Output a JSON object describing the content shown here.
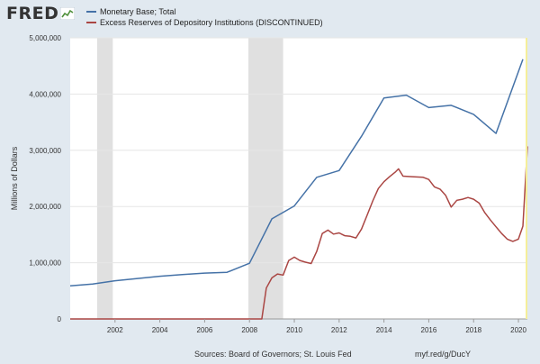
{
  "header": {
    "logo_text": "FRED",
    "logo_icon": "chart-line-icon"
  },
  "colors": {
    "background": "#e1e9f0",
    "plot_background": "#ffffff",
    "recession_shade": "#e0e0e0",
    "series_blue": "#4572a7",
    "series_red": "#aa4643"
  },
  "footer": {
    "sources": "Sources: Board of Governors; St. Louis Fed",
    "url": "myf.red/g/DucY"
  },
  "chart_data": {
    "type": "line",
    "title": "",
    "xlabel": "",
    "ylabel": "Millions of Dollars",
    "xlim": [
      2000,
      2020.4
    ],
    "ylim": [
      0,
      5000000
    ],
    "x_ticks": [
      {
        "value": 2002,
        "label": "2002"
      },
      {
        "value": 2004,
        "label": "2004"
      },
      {
        "value": 2006,
        "label": "2006"
      },
      {
        "value": 2008,
        "label": "2008"
      },
      {
        "value": 2010,
        "label": "2010"
      },
      {
        "value": 2012,
        "label": "2012"
      },
      {
        "value": 2014,
        "label": "2014"
      },
      {
        "value": 2016,
        "label": "2016"
      },
      {
        "value": 2018,
        "label": "2018"
      },
      {
        "value": 2020,
        "label": "2020"
      }
    ],
    "y_ticks": [
      {
        "value": 0,
        "label": "0"
      },
      {
        "value": 1000000,
        "label": "1,000,000"
      },
      {
        "value": 2000000,
        "label": "2,000,000"
      },
      {
        "value": 3000000,
        "label": "3,000,000"
      },
      {
        "value": 4000000,
        "label": "4,000,000"
      },
      {
        "value": 5000000,
        "label": "5,000,000"
      }
    ],
    "grid": true,
    "legend_position": "top",
    "recessions": [
      [
        2001.2,
        2001.9
      ],
      [
        2007.95,
        2009.5
      ]
    ],
    "series": [
      {
        "name": "Monetary Base; Total",
        "color": "#4572a7",
        "points": [
          [
            2000.0,
            590000
          ],
          [
            2001.0,
            620000
          ],
          [
            2002.0,
            680000
          ],
          [
            2003.0,
            720000
          ],
          [
            2004.0,
            760000
          ],
          [
            2005.0,
            790000
          ],
          [
            2006.0,
            815000
          ],
          [
            2007.0,
            830000
          ],
          [
            2008.0,
            990000
          ],
          [
            2009.0,
            1780000
          ],
          [
            2010.0,
            2010000
          ],
          [
            2011.0,
            2520000
          ],
          [
            2012.0,
            2640000
          ],
          [
            2013.0,
            3250000
          ],
          [
            2014.0,
            3930000
          ],
          [
            2015.0,
            3980000
          ],
          [
            2016.0,
            3760000
          ],
          [
            2017.0,
            3800000
          ],
          [
            2018.0,
            3640000
          ],
          [
            2019.0,
            3300000
          ],
          [
            2020.2,
            4620000
          ]
        ]
      },
      {
        "name": "Excess Reserves of Depository Institutions (DISCONTINUED)",
        "color": "#aa4643",
        "points": [
          [
            2000.0,
            0
          ],
          [
            2008.55,
            0
          ],
          [
            2008.75,
            550000
          ],
          [
            2009.0,
            730000
          ],
          [
            2009.25,
            800000
          ],
          [
            2009.5,
            780000
          ],
          [
            2009.75,
            1040000
          ],
          [
            2010.0,
            1100000
          ],
          [
            2010.25,
            1040000
          ],
          [
            2010.5,
            1010000
          ],
          [
            2010.75,
            985000
          ],
          [
            2011.0,
            1200000
          ],
          [
            2011.25,
            1520000
          ],
          [
            2011.5,
            1580000
          ],
          [
            2011.75,
            1510000
          ],
          [
            2012.0,
            1530000
          ],
          [
            2012.25,
            1480000
          ],
          [
            2012.5,
            1470000
          ],
          [
            2012.75,
            1440000
          ],
          [
            2013.0,
            1600000
          ],
          [
            2013.25,
            1850000
          ],
          [
            2013.5,
            2100000
          ],
          [
            2013.75,
            2320000
          ],
          [
            2014.0,
            2440000
          ],
          [
            2014.25,
            2530000
          ],
          [
            2014.5,
            2610000
          ],
          [
            2014.65,
            2670000
          ],
          [
            2014.85,
            2540000
          ],
          [
            2015.25,
            2530000
          ],
          [
            2015.75,
            2520000
          ],
          [
            2016.0,
            2480000
          ],
          [
            2016.25,
            2350000
          ],
          [
            2016.5,
            2310000
          ],
          [
            2016.75,
            2200000
          ],
          [
            2017.0,
            1990000
          ],
          [
            2017.25,
            2110000
          ],
          [
            2017.5,
            2130000
          ],
          [
            2017.75,
            2160000
          ],
          [
            2018.0,
            2130000
          ],
          [
            2018.25,
            2060000
          ],
          [
            2018.5,
            1890000
          ],
          [
            2018.75,
            1760000
          ],
          [
            2019.0,
            1640000
          ],
          [
            2019.25,
            1520000
          ],
          [
            2019.5,
            1420000
          ],
          [
            2019.75,
            1380000
          ],
          [
            2020.0,
            1420000
          ],
          [
            2020.2,
            1650000
          ],
          [
            2020.4,
            3070000
          ]
        ]
      }
    ]
  }
}
